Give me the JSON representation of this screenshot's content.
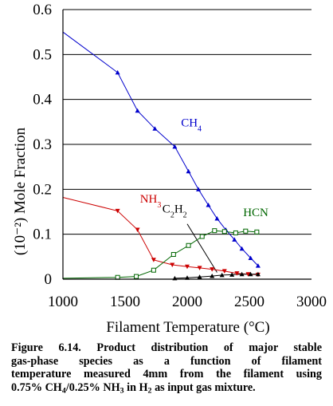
{
  "chart_data": {
    "type": "line",
    "xlabel": "Filament Temperature (°C)",
    "ylabel": "(10⁻²) Mole Fraction",
    "xlim": [
      1000,
      3000
    ],
    "ylim": [
      0,
      0.6
    ],
    "x_ticks": [
      "1000",
      "1500",
      "2000",
      "2500",
      "3000"
    ],
    "y_ticks": [
      "0",
      "0.1",
      "0.2",
      "0.3",
      "0.4",
      "0.5",
      "0.6"
    ],
    "grid": "horizontal",
    "legend": "none",
    "series": [
      {
        "name": "CH4",
        "label_base": "CH",
        "label_sub": "4",
        "color": "#0000cc",
        "marker": "triangle-up",
        "x": [
          1000,
          1440,
          1600,
          1740,
          1900,
          2010,
          2090,
          2170,
          2240,
          2310,
          2380,
          2440,
          2510,
          2570
        ],
        "y": [
          0.55,
          0.46,
          0.375,
          0.335,
          0.295,
          0.24,
          0.2,
          0.165,
          0.135,
          0.11,
          0.088,
          0.068,
          0.047,
          0.03
        ],
        "marker_from": 1
      },
      {
        "name": "NH3",
        "label_base": "NH",
        "label_sub": "3",
        "color": "#cc0000",
        "marker": "triangle-down",
        "x": [
          1000,
          1440,
          1600,
          1730,
          1880,
          2000,
          2100,
          2200,
          2300,
          2400,
          2490,
          2570
        ],
        "y": [
          0.182,
          0.152,
          0.11,
          0.043,
          0.032,
          0.028,
          0.025,
          0.022,
          0.018,
          0.013,
          0.011,
          0.01
        ],
        "marker_from": 1
      },
      {
        "name": "C2H2",
        "label_base": "C",
        "label_sub": "2",
        "label_base2": "H",
        "label_sub2": "2",
        "color": "#000000",
        "marker": "triangle-up",
        "x": [
          1900,
          2000,
          2100,
          2200,
          2280,
          2360,
          2440,
          2510,
          2570
        ],
        "y": [
          0.002,
          0.003,
          0.005,
          0.007,
          0.009,
          0.01,
          0.011,
          0.011,
          0.011
        ],
        "marker_from": 0
      },
      {
        "name": "HCN",
        "label_base": "HCN",
        "color": "#006600",
        "marker": "square",
        "x": [
          1000,
          1440,
          1590,
          1730,
          1890,
          2010,
          2120,
          2220,
          2300,
          2390,
          2470,
          2560
        ],
        "y": [
          0.002,
          0.004,
          0.006,
          0.02,
          0.055,
          0.075,
          0.095,
          0.108,
          0.106,
          0.103,
          0.107,
          0.105
        ],
        "marker_from": 1
      }
    ],
    "annotations": [
      {
        "series": "CH4",
        "x": 1950,
        "y": 0.34
      },
      {
        "series": "NH3",
        "x": 1620,
        "y": 0.17
      },
      {
        "series": "C2H2",
        "x": 1800,
        "y": 0.148
      },
      {
        "series": "HCN",
        "x": 2450,
        "y": 0.14
      }
    ],
    "pointer": {
      "from": [
        2000,
        0.123
      ],
      "to": [
        2240,
        0.015
      ]
    }
  },
  "caption": {
    "line1": "Figure 6.14. Product distribution of major stable",
    "line2": "gas-phase species as a function of filament",
    "line3": "temperature measured 4mm from the filament using",
    "line4_pre": "0.75% CH",
    "line4_sub1": "4",
    "line4_mid": "/0.25% NH",
    "line4_sub2": "3",
    "line4_mid2": " in H",
    "line4_sub3": "2",
    "line4_post": " as input gas mixture."
  }
}
